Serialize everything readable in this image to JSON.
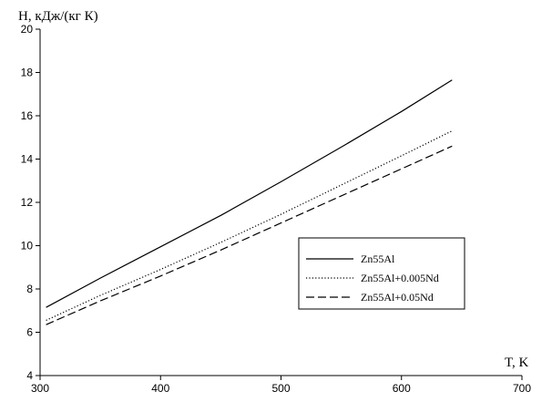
{
  "chart_data": {
    "type": "line",
    "title": "",
    "xlabel": "T, K",
    "ylabel": "H, кДж/(кг К)",
    "xlim": [
      300,
      700
    ],
    "ylim": [
      4,
      20
    ],
    "xticks": [
      300,
      400,
      500,
      600,
      700
    ],
    "yticks": [
      4,
      6,
      8,
      10,
      12,
      14,
      16,
      18,
      20
    ],
    "grid": false,
    "legend_position": "right",
    "series": [
      {
        "name": "Zn55Al",
        "dash": "solid",
        "color": "#000000",
        "x": [
          305,
          350,
          400,
          450,
          500,
          550,
          600,
          642
        ],
        "y": [
          7.15,
          8.5,
          9.95,
          11.4,
          12.95,
          14.55,
          16.2,
          17.65
        ]
      },
      {
        "name": "Zn55Al+0.005Nd",
        "dash": "dotted",
        "color": "#000000",
        "x": [
          305,
          350,
          400,
          450,
          500,
          550,
          600,
          642
        ],
        "y": [
          6.55,
          7.7,
          8.9,
          10.15,
          11.45,
          12.8,
          14.15,
          15.3
        ]
      },
      {
        "name": "Zn55Al+0.05Nd",
        "dash": "dashed",
        "color": "#000000",
        "x": [
          305,
          350,
          400,
          450,
          500,
          550,
          600,
          642
        ],
        "y": [
          6.35,
          7.45,
          8.6,
          9.8,
          11.05,
          12.3,
          13.55,
          14.6
        ]
      }
    ]
  }
}
